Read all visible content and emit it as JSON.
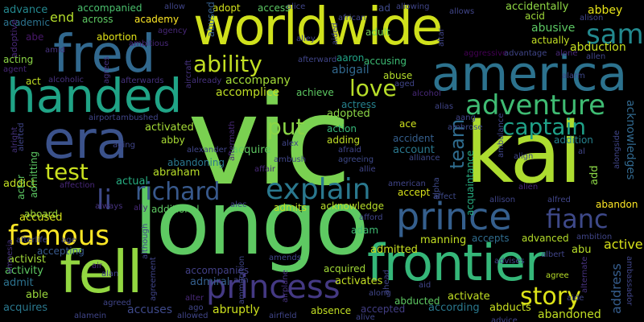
{
  "words": [
    {
      "text": "vic",
      "color": "#7ad151"
    },
    {
      "text": "longo",
      "color": "#5ec962"
    },
    {
      "text": "worldwide",
      "color": "#d0e11c"
    },
    {
      "text": "kai",
      "color": "#addc30"
    },
    {
      "text": "america",
      "color": "#2c728e"
    },
    {
      "text": "fred",
      "color": "#31688e"
    },
    {
      "text": "handed",
      "color": "#20a486"
    },
    {
      "text": "era",
      "color": "#3b528b"
    },
    {
      "text": "frontier",
      "color": "#35b779"
    },
    {
      "text": "fell",
      "color": "#93d741"
    },
    {
      "text": "prince",
      "color": "#355f8d"
    },
    {
      "text": "princess",
      "color": "#443983"
    },
    {
      "text": "adventure",
      "color": "#3fbc73"
    },
    {
      "text": "captain",
      "color": "#1fa188"
    },
    {
      "text": "explain",
      "color": "#2a788e"
    },
    {
      "text": "richard",
      "color": "#38598c"
    },
    {
      "text": "famous",
      "color": "#fde725"
    },
    {
      "text": "fianc",
      "color": "#3e4989"
    },
    {
      "text": "ability",
      "color": "#c2df23"
    },
    {
      "text": "sam",
      "color": "#23898e"
    },
    {
      "text": "story",
      "color": "#dde318"
    },
    {
      "text": "love",
      "color": "#b8de29"
    },
    {
      "text": "test",
      "color": "#cae11f"
    },
    {
      "text": "put",
      "color": "#8bd646"
    },
    {
      "text": "team",
      "color": "#2f6c8e"
    },
    {
      "text": "li",
      "color": "#3e4a89"
    },
    {
      "text": "abduction",
      "color": "#c8e020"
    },
    {
      "text": "abbey",
      "color": "#e7e419"
    },
    {
      "text": "abusive",
      "color": "#5cc863"
    },
    {
      "text": "acknowledges",
      "color": "#31688e"
    },
    {
      "text": "address",
      "color": "#365d8d"
    },
    {
      "text": "active",
      "color": "#d8e219"
    },
    {
      "text": "accompany",
      "color": "#a2da37"
    },
    {
      "text": "accomplice",
      "color": "#c0df25"
    },
    {
      "text": "end",
      "color": "#b5de2b"
    },
    {
      "text": "act",
      "color": "#c2df23"
    },
    {
      "text": "accused",
      "color": "#d8e219"
    },
    {
      "text": "activist",
      "color": "#a2da37"
    },
    {
      "text": "activity",
      "color": "#5ec962"
    },
    {
      "text": "admit",
      "color": "#2c728e"
    },
    {
      "text": "able",
      "color": "#9bd93c"
    },
    {
      "text": "acquires",
      "color": "#2a788e"
    },
    {
      "text": "across",
      "color": "#5ec962"
    },
    {
      "text": "accompanied",
      "color": "#4ac16d"
    },
    {
      "text": "academy",
      "color": "#fde725"
    },
    {
      "text": "abortion",
      "color": "#e2e418"
    },
    {
      "text": "abe",
      "color": "#48186a"
    },
    {
      "text": "acting",
      "color": "#8bd646"
    },
    {
      "text": "adopt",
      "color": "#d2e21b"
    },
    {
      "text": "access",
      "color": "#5cc863"
    },
    {
      "text": "accidentally",
      "color": "#8fd744"
    },
    {
      "text": "adult",
      "color": "#73d056"
    },
    {
      "text": "actually",
      "color": "#c2df23"
    },
    {
      "text": "acid",
      "color": "#9fda3a"
    },
    {
      "text": "abuse",
      "color": "#b5de2b"
    },
    {
      "text": "aaron",
      "color": "#20a386"
    },
    {
      "text": "abigail",
      "color": "#31688e"
    },
    {
      "text": "accusing",
      "color": "#3dbc74"
    },
    {
      "text": "achieve",
      "color": "#5ec962"
    },
    {
      "text": "actress",
      "color": "#26828e"
    },
    {
      "text": "action",
      "color": "#35b779"
    },
    {
      "text": "adding",
      "color": "#c0df25"
    },
    {
      "text": "account",
      "color": "#2a788e"
    },
    {
      "text": "accident",
      "color": "#355f8d"
    },
    {
      "text": "ace",
      "color": "#cde11d"
    },
    {
      "text": "adopted",
      "color": "#8bd646"
    },
    {
      "text": "activated",
      "color": "#a5db36"
    },
    {
      "text": "abby",
      "color": "#a8db34"
    },
    {
      "text": "abandoning",
      "color": "#2a788e"
    },
    {
      "text": "abraham",
      "color": "#b8de29"
    },
    {
      "text": "actual",
      "color": "#27ad81"
    },
    {
      "text": "acquire",
      "color": "#5ec962"
    },
    {
      "text": "addition",
      "color": "#26828e"
    },
    {
      "text": "accept",
      "color": "#d8e219"
    },
    {
      "text": "acquaintance",
      "color": "#27ad81"
    },
    {
      "text": "add",
      "color": "#8bd646"
    },
    {
      "text": "abandon",
      "color": "#fde725"
    },
    {
      "text": "acknowledge",
      "color": "#b8de29"
    },
    {
      "text": "admits",
      "color": "#c2df23"
    },
    {
      "text": "additional",
      "color": "#5ec962"
    },
    {
      "text": "actor",
      "color": "#5cc863"
    },
    {
      "text": "addict",
      "color": "#c2df23"
    },
    {
      "text": "admitting",
      "color": "#5cc863"
    },
    {
      "text": "aboard",
      "color": "#a0da39"
    },
    {
      "text": "accepting",
      "color": "#38598c"
    },
    {
      "text": "adam",
      "color": "#3fbc73"
    },
    {
      "text": "manning",
      "color": "#c2df23"
    },
    {
      "text": "accepts",
      "color": "#2f6c8e"
    },
    {
      "text": "advanced",
      "color": "#b5de2b"
    },
    {
      "text": "abu",
      "color": "#b8de29"
    },
    {
      "text": "admitted",
      "color": "#c8e020"
    },
    {
      "text": "acquired",
      "color": "#a2da37"
    },
    {
      "text": "activates",
      "color": "#c2df23"
    },
    {
      "text": "admiral",
      "color": "#355f8d"
    },
    {
      "text": "accompanies",
      "color": "#424086"
    },
    {
      "text": "abducted",
      "color": "#5ec962"
    },
    {
      "text": "activate",
      "color": "#c2df23"
    },
    {
      "text": "abducts",
      "color": "#c8e020"
    },
    {
      "text": "according",
      "color": "#2a788e"
    },
    {
      "text": "absence",
      "color": "#c2df23"
    },
    {
      "text": "abruptly",
      "color": "#cde11d"
    },
    {
      "text": "accuses",
      "color": "#3e4989"
    },
    {
      "text": "accepted",
      "color": "#433e85"
    },
    {
      "text": "abandoned",
      "color": "#c2df23"
    },
    {
      "text": "advance",
      "color": "#24878e"
    },
    {
      "text": "abused",
      "color": "#355f8d"
    },
    {
      "text": "academic",
      "color": "#2c728e"
    },
    {
      "text": "adoptive",
      "color": "#482878"
    },
    {
      "text": "ambition",
      "color": "#404588"
    },
    {
      "text": "allows",
      "color": "#404588"
    },
    {
      "text": "alison",
      "color": "#404588"
    },
    {
      "text": "allen",
      "color": "#404588"
    },
    {
      "text": "alarm",
      "color": "#3e4989"
    },
    {
      "text": "alone",
      "color": "#482878"
    },
    {
      "text": "aged",
      "color": "#404588"
    },
    {
      "text": "alcohol",
      "color": "#482878"
    },
    {
      "text": "aggressive",
      "color": "#440154"
    },
    {
      "text": "advantage",
      "color": "#404588"
    },
    {
      "text": "african",
      "color": "#404588"
    },
    {
      "text": "alice",
      "color": "#404588"
    },
    {
      "text": "allowing",
      "color": "#404588"
    },
    {
      "text": "ad",
      "color": "#3e4989"
    },
    {
      "text": "alcoholic",
      "color": "#46327e"
    },
    {
      "text": "afterwards",
      "color": "#46327e"
    },
    {
      "text": "agrees",
      "color": "#46327e"
    },
    {
      "text": "agent",
      "color": "#482878"
    },
    {
      "text": "amid",
      "color": "#46327e"
    },
    {
      "text": "ambitious",
      "color": "#482878"
    },
    {
      "text": "agency",
      "color": "#482878"
    },
    {
      "text": "allow",
      "color": "#404588"
    },
    {
      "text": "alley",
      "color": "#404588"
    },
    {
      "text": "afterward",
      "color": "#404588"
    },
    {
      "text": "aircraft",
      "color": "#46327e"
    },
    {
      "text": "already",
      "color": "#46327e"
    },
    {
      "text": "aided",
      "color": "#404588"
    },
    {
      "text": "altar",
      "color": "#404588"
    },
    {
      "text": "alias",
      "color": "#404588"
    },
    {
      "text": "alliance",
      "color": "#3e4989"
    },
    {
      "text": "alpha",
      "color": "#3e4989"
    },
    {
      "text": "aang",
      "color": "#404588"
    },
    {
      "text": "ambrose",
      "color": "#3e4989"
    },
    {
      "text": "affect",
      "color": "#3e4989"
    },
    {
      "text": "ambulance",
      "color": "#404588"
    },
    {
      "text": "align",
      "color": "#404588"
    },
    {
      "text": "airport",
      "color": "#404588"
    },
    {
      "text": "ambushed",
      "color": "#404588"
    },
    {
      "text": "alright",
      "color": "#46327e"
    },
    {
      "text": "alerted",
      "color": "#404588"
    },
    {
      "text": "aging",
      "color": "#404588"
    },
    {
      "text": "alexander",
      "color": "#404588"
    },
    {
      "text": "affection",
      "color": "#482878"
    },
    {
      "text": "affair",
      "color": "#482878"
    },
    {
      "text": "ambush",
      "color": "#404588"
    },
    {
      "text": "alex",
      "color": "#404588"
    },
    {
      "text": "afraid",
      "color": "#404588"
    },
    {
      "text": "agreeing",
      "color": "#3e4989"
    },
    {
      "text": "aftermath",
      "color": "#482878"
    },
    {
      "text": "allie",
      "color": "#404588"
    },
    {
      "text": "alec",
      "color": "#404588"
    },
    {
      "text": "american",
      "color": "#404588"
    },
    {
      "text": "afterlife",
      "color": "#404588"
    },
    {
      "text": "age",
      "color": "#404588"
    },
    {
      "text": "always",
      "color": "#46327e"
    },
    {
      "text": "ally",
      "color": "#482878"
    },
    {
      "text": "afford",
      "color": "#404588"
    },
    {
      "text": "alien",
      "color": "#482878"
    },
    {
      "text": "allison",
      "color": "#404588"
    },
    {
      "text": "alfred",
      "color": "#404588"
    },
    {
      "text": "al",
      "color": "#404588"
    },
    {
      "text": "alongside",
      "color": "#404588"
    },
    {
      "text": "amnesia",
      "color": "#46327e"
    },
    {
      "text": "air",
      "color": "#482878"
    },
    {
      "text": "alan",
      "color": "#404588"
    },
    {
      "text": "although",
      "color": "#404588"
    },
    {
      "text": "agreement",
      "color": "#404588"
    },
    {
      "text": "aim",
      "color": "#404588"
    },
    {
      "text": "ammunition",
      "color": "#404588"
    },
    {
      "text": "amends",
      "color": "#404588"
    },
    {
      "text": "airplane",
      "color": "#46327e"
    },
    {
      "text": "ahead",
      "color": "#404588"
    },
    {
      "text": "advises",
      "color": "#404588"
    },
    {
      "text": "albert",
      "color": "#404588"
    },
    {
      "text": "alternate",
      "color": "#46327e"
    },
    {
      "text": "aid",
      "color": "#404588"
    },
    {
      "text": "agree",
      "color": "#b8de29"
    },
    {
      "text": "along",
      "color": "#404588"
    },
    {
      "text": "aide",
      "color": "#404588"
    },
    {
      "text": "ambassador",
      "color": "#404588"
    },
    {
      "text": "alter",
      "color": "#482878"
    },
    {
      "text": "agreed",
      "color": "#404588"
    },
    {
      "text": "ago",
      "color": "#404588"
    },
    {
      "text": "allowed",
      "color": "#404588"
    },
    {
      "text": "airfield",
      "color": "#404588"
    },
    {
      "text": "alamein",
      "color": "#404588"
    },
    {
      "text": "advice",
      "color": "#404588"
    },
    {
      "text": "alive",
      "color": "#404588"
    }
  ]
}
